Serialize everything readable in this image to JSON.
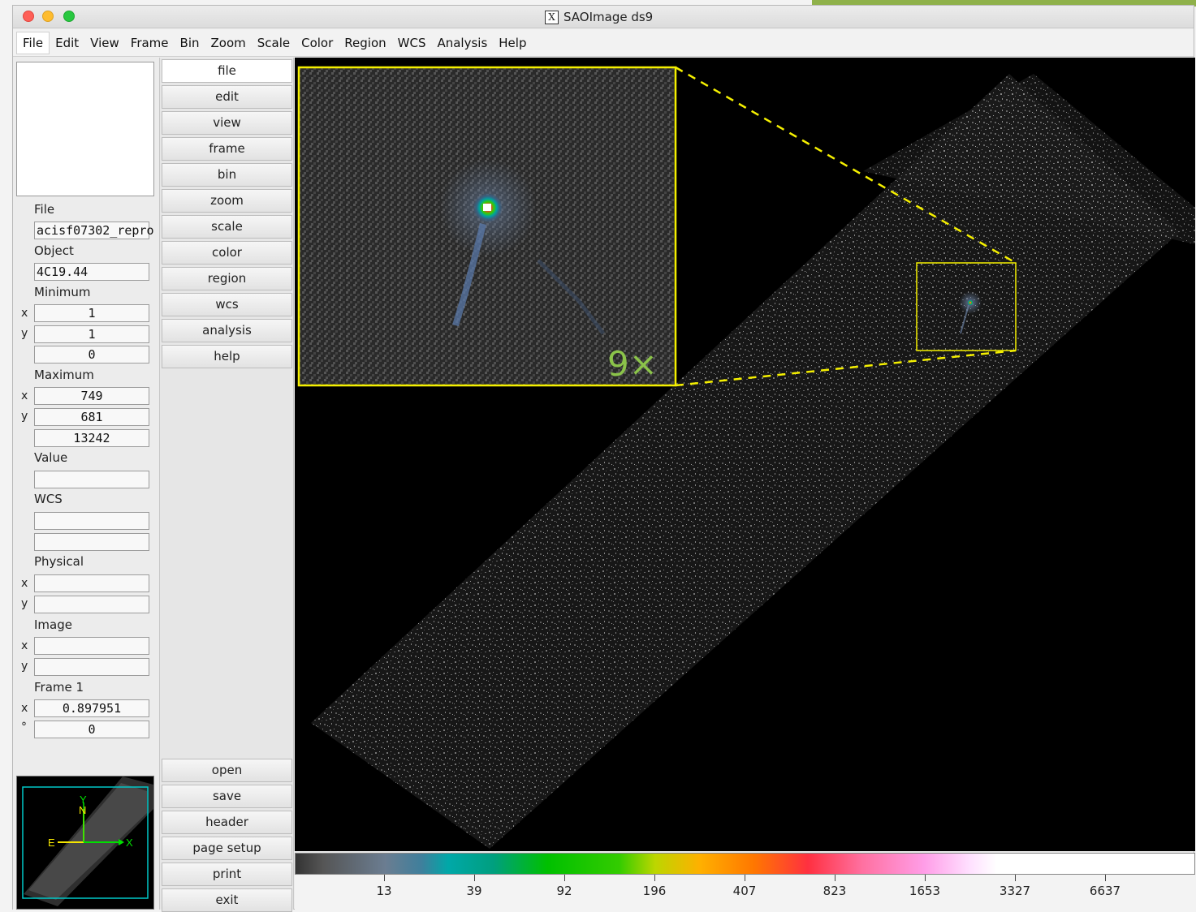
{
  "window": {
    "title": "SAOImage ds9"
  },
  "menubar": [
    "File",
    "Edit",
    "View",
    "Frame",
    "Bin",
    "Zoom",
    "Scale",
    "Color",
    "Region",
    "WCS",
    "Analysis",
    "Help"
  ],
  "info_panel": {
    "file_label": "File",
    "file_value": "acisf07302_repro",
    "object_label": "Object",
    "object_value": "4C19.44",
    "minimum_label": "Minimum",
    "min_x": "1",
    "min_y": "1",
    "min_value": "0",
    "maximum_label": "Maximum",
    "max_x": "749",
    "max_y": "681",
    "max_value": "13242",
    "value_label": "Value",
    "value_value": "",
    "wcs_label": "WCS",
    "wcs_1": "",
    "wcs_2": "",
    "physical_label": "Physical",
    "physical_x": "",
    "physical_y": "",
    "image_label": "Image",
    "image_x": "",
    "image_y": "",
    "frame_label": "Frame 1",
    "frame_zoom": "0.897951",
    "frame_angle": "0",
    "x_axis": "x",
    "y_axis": "y",
    "deg_axis": "°"
  },
  "buttons_top": [
    "file",
    "edit",
    "view",
    "frame",
    "bin",
    "zoom",
    "scale",
    "color",
    "region",
    "wcs",
    "analysis",
    "help"
  ],
  "buttons_bottom": [
    "open",
    "save",
    "header",
    "page setup",
    "print",
    "exit"
  ],
  "inset": {
    "zoom_label": "9×"
  },
  "panner": {
    "north": "N",
    "y_label": "Y",
    "east": "E",
    "x_label": "X"
  },
  "colorbar": {
    "ticks": [
      "13",
      "39",
      "92",
      "196",
      "407",
      "823",
      "1653",
      "3327",
      "6637"
    ]
  },
  "colors": {
    "region_yellow": "#f5f000",
    "zoom_label_green": "#8bc34a",
    "compass_yellow": "#f5e600",
    "compass_green": "#00e000",
    "panner_box": "#00c8c8"
  }
}
